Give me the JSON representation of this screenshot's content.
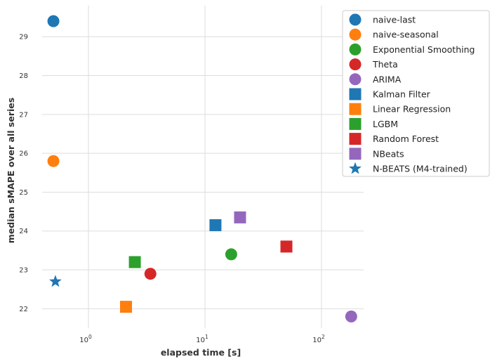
{
  "chart_data": {
    "type": "scatter",
    "xlabel": "elapsed time [s]",
    "ylabel": "median sMAPE over all series",
    "xscale": "log",
    "xlim": [
      0.4,
      230
    ],
    "ylim": [
      21.5,
      29.8
    ],
    "grid": true,
    "legend_position": "top-right",
    "x_ticks": [
      {
        "value": 1,
        "base": "10",
        "exp": "0"
      },
      {
        "value": 10,
        "base": "10",
        "exp": "1"
      },
      {
        "value": 100,
        "base": "10",
        "exp": "2"
      }
    ],
    "y_ticks": [
      22,
      23,
      24,
      25,
      26,
      27,
      28,
      29
    ],
    "series": [
      {
        "name": "naive-last",
        "marker": "circle",
        "color": "#1f77b4",
        "x": 0.5,
        "y": 29.4
      },
      {
        "name": "naive-seasonal",
        "marker": "circle",
        "color": "#ff7f0e",
        "x": 0.5,
        "y": 25.8
      },
      {
        "name": "Exponential Smoothing",
        "marker": "circle",
        "color": "#2ca02c",
        "x": 16.8,
        "y": 23.4
      },
      {
        "name": "Theta",
        "marker": "circle",
        "color": "#d62728",
        "x": 3.4,
        "y": 22.9
      },
      {
        "name": "ARIMA",
        "marker": "circle",
        "color": "#9467bd",
        "x": 180,
        "y": 21.8
      },
      {
        "name": "Kalman Filter",
        "marker": "square",
        "color": "#1f77b4",
        "x": 12.3,
        "y": 24.15
      },
      {
        "name": "Linear Regression",
        "marker": "square",
        "color": "#ff7f0e",
        "x": 2.1,
        "y": 22.05
      },
      {
        "name": "LGBM",
        "marker": "square",
        "color": "#2ca02c",
        "x": 2.5,
        "y": 23.2
      },
      {
        "name": "Random Forest",
        "marker": "square",
        "color": "#d62728",
        "x": 50,
        "y": 23.6
      },
      {
        "name": "NBeats",
        "marker": "square",
        "color": "#9467bd",
        "x": 20,
        "y": 24.35
      },
      {
        "name": "N-BEATS (M4-trained)",
        "marker": "star",
        "color": "#1f77b4",
        "x": 0.52,
        "y": 22.7
      }
    ]
  }
}
